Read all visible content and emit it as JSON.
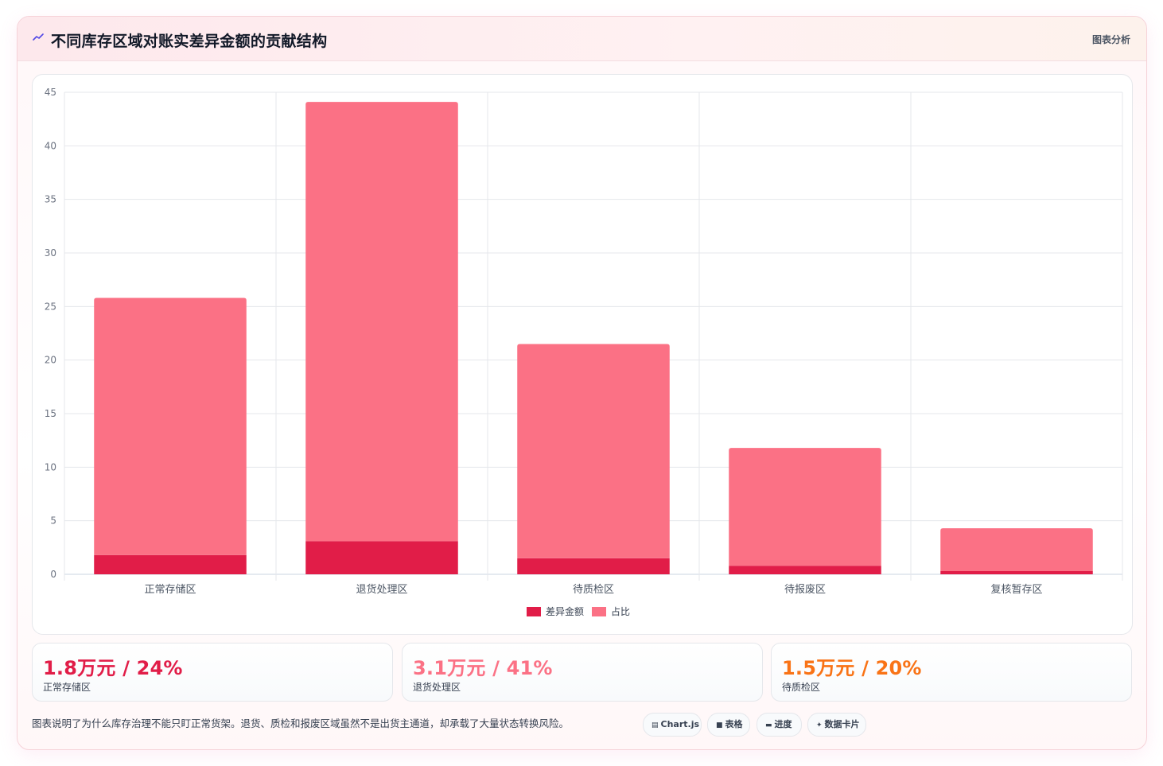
{
  "header": {
    "title": "不同库存区域对账实差异金额的贡献结构",
    "tag": "图表分析",
    "icon": "trend-line-icon"
  },
  "chart_data": {
    "type": "bar",
    "stacked": true,
    "categories": [
      "正常存储区",
      "退货处理区",
      "待质检区",
      "待报废区",
      "复核暂存区"
    ],
    "series": [
      {
        "name": "差异金额",
        "values": [
          1.8,
          3.1,
          1.5,
          0.8,
          0.3
        ],
        "color": "#e11d48"
      },
      {
        "name": "占比",
        "values": [
          24,
          41,
          20,
          11,
          4
        ],
        "color": "#fb7185"
      }
    ],
    "ylim": [
      0,
      45
    ],
    "yticks": [
      "0",
      "5",
      "10",
      "15",
      "20",
      "25",
      "30",
      "35",
      "40",
      "45"
    ],
    "grid": true,
    "legend": "bottom"
  },
  "kpis": [
    {
      "value": "1.8万元 / 24%",
      "label": "正常存储区",
      "color": "#e11d48"
    },
    {
      "value": "3.1万元 / 41%",
      "label": "退货处理区",
      "color": "#fb7185"
    },
    {
      "value": "1.5万元 / 20%",
      "label": "待质检区",
      "color": "#f97316"
    }
  ],
  "footer": {
    "note": "图表说明了为什么库存治理不能只盯正常货架。退货、质检和报废区域虽然不是出货主通道，却承载了大量状态转换风险。",
    "chips": [
      {
        "label": "Chart.js",
        "icon": "chart-icon"
      },
      {
        "label": "表格",
        "icon": "table-icon"
      },
      {
        "label": "进度",
        "icon": "progress-icon"
      },
      {
        "label": "数据卡片",
        "icon": "sparkle-icon"
      }
    ]
  }
}
